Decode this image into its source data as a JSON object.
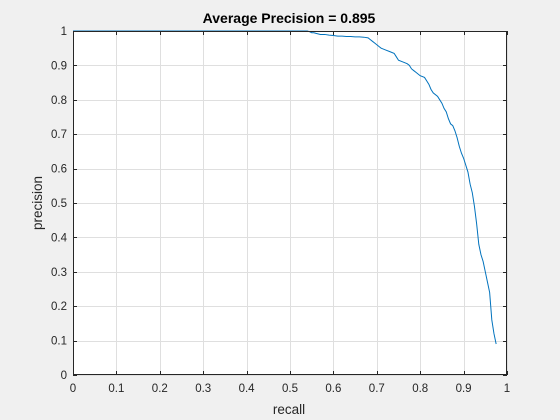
{
  "chart_data": {
    "type": "line",
    "title": "Average Precision = 0.895",
    "xlabel": "recall",
    "ylabel": "precision",
    "xlim": [
      0,
      1
    ],
    "ylim": [
      0,
      1
    ],
    "xticks": [
      "0",
      "0.1",
      "0.2",
      "0.3",
      "0.4",
      "0.5",
      "0.6",
      "0.7",
      "0.8",
      "0.9",
      "1"
    ],
    "yticks": [
      "0",
      "0.1",
      "0.2",
      "0.3",
      "0.4",
      "0.5",
      "0.6",
      "0.7",
      "0.8",
      "0.9",
      "1"
    ],
    "grid": true,
    "series_color": "#0072bd",
    "series": [
      {
        "x": [
          0,
          0.1,
          0.2,
          0.3,
          0.4,
          0.5,
          0.54,
          0.545,
          0.55,
          0.555,
          0.56,
          0.57,
          0.58,
          0.59,
          0.6,
          0.61,
          0.62,
          0.63,
          0.64,
          0.65,
          0.66,
          0.67,
          0.68,
          0.685,
          0.69,
          0.695,
          0.7,
          0.705,
          0.71,
          0.72,
          0.73,
          0.74,
          0.745,
          0.75,
          0.76,
          0.77,
          0.775,
          0.78,
          0.785,
          0.79,
          0.8,
          0.81,
          0.815,
          0.82,
          0.825,
          0.83,
          0.84,
          0.845,
          0.85,
          0.855,
          0.86,
          0.865,
          0.87,
          0.875,
          0.88,
          0.885,
          0.89,
          0.895,
          0.9,
          0.905,
          0.91,
          0.915,
          0.92,
          0.925,
          0.93,
          0.935,
          0.94,
          0.945,
          0.95,
          0.955,
          0.96,
          0.965,
          0.97,
          0.975
        ],
        "y": [
          1.0,
          1.0,
          1.0,
          1.0,
          1.0,
          1.0,
          1.0,
          0.998,
          0.995,
          0.995,
          0.993,
          0.99,
          0.99,
          0.988,
          0.987,
          0.985,
          0.985,
          0.984,
          0.984,
          0.983,
          0.983,
          0.982,
          0.98,
          0.975,
          0.97,
          0.965,
          0.96,
          0.955,
          0.95,
          0.945,
          0.94,
          0.935,
          0.925,
          0.915,
          0.91,
          0.905,
          0.9,
          0.89,
          0.885,
          0.88,
          0.87,
          0.865,
          0.855,
          0.845,
          0.83,
          0.82,
          0.81,
          0.8,
          0.79,
          0.775,
          0.765,
          0.745,
          0.73,
          0.725,
          0.71,
          0.69,
          0.665,
          0.645,
          0.63,
          0.61,
          0.59,
          0.555,
          0.53,
          0.49,
          0.44,
          0.38,
          0.35,
          0.33,
          0.3,
          0.27,
          0.24,
          0.16,
          0.12,
          0.09
        ]
      }
    ]
  }
}
